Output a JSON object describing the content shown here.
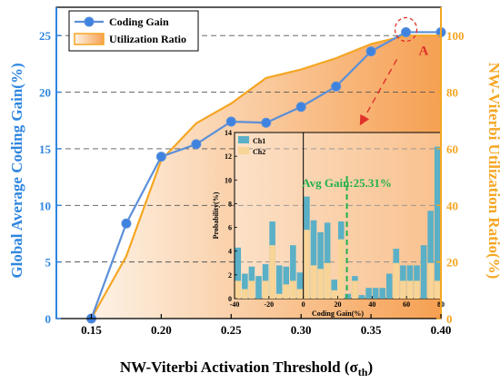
{
  "chart_data": [
    {
      "type": "line",
      "xlabel": "NW-Viterbi Activation Threshold (σth)",
      "xlabel_main": "NW-Viterbi Activation Threshold (σ",
      "xlabel_sub": "th",
      "xlabel_close": ")",
      "ylabel_left": "Global Average Coding Gain(%)",
      "ylabel_right": "NW-Viterbi Utilization Ratio(%)",
      "xlim": [
        0.125,
        0.4
      ],
      "ylim_left": [
        0,
        27.5
      ],
      "ylim_right": [
        0,
        110
      ],
      "x_ticks": [
        0.15,
        0.2,
        0.25,
        0.3,
        0.35,
        0.4
      ],
      "x_tick_labels": [
        "0.15",
        "0.20",
        "0.25",
        "0.30",
        "0.35",
        "0.40"
      ],
      "y_left_ticks": [
        0,
        5,
        10,
        15,
        20,
        25
      ],
      "y_right_ticks": [
        0,
        20,
        40,
        60,
        80,
        100
      ],
      "grid": "dashed horizontal at left-axis ticks",
      "legend_position": "top-left",
      "colors": {
        "coding_gain": "#5b8fd8",
        "coding_gain_marker": "#3f83e0",
        "utilization": "#f5a623",
        "fill_light": "#fdf2e6",
        "fill_dark": "#f6a052",
        "left_axis": "#2f86df",
        "right_axis": "#f5a623",
        "annotation": "#e0302a"
      },
      "series": [
        {
          "name": "Coding Gain",
          "axis": "left",
          "x": [
            0.15,
            0.175,
            0.2,
            0.225,
            0.25,
            0.275,
            0.3,
            0.325,
            0.35,
            0.375,
            0.4
          ],
          "values": [
            0,
            8.4,
            14.3,
            15.4,
            17.4,
            17.3,
            18.7,
            20.5,
            23.6,
            25.3,
            25.3
          ]
        },
        {
          "name": "Utilization Ratio",
          "axis": "right",
          "x": [
            0.15,
            0.175,
            0.2,
            0.225,
            0.25,
            0.275,
            0.3,
            0.325,
            0.35,
            0.375,
            0.4
          ],
          "values": [
            0,
            22,
            56,
            69,
            76,
            85,
            88,
            92,
            97,
            100,
            100
          ]
        }
      ],
      "annotation": {
        "label": "A",
        "x": 0.375,
        "value": 25.3
      }
    },
    {
      "type": "bar",
      "role": "inset histogram",
      "xlabel": "Coding Gain(%)",
      "ylabel": "Probability(%)",
      "xlim": [
        -40,
        80
      ],
      "ylim": [
        0,
        14
      ],
      "x_ticks": [
        -40,
        -20,
        0,
        20,
        40,
        60,
        80
      ],
      "y_ticks": [
        0,
        2,
        4,
        6,
        8,
        10,
        12,
        14
      ],
      "bin_width": 4,
      "colors": {
        "ch1": "#5ab0c6",
        "ch2": "#f8d596",
        "avg_line": "#22b14c"
      },
      "avg_gain": {
        "label": "Avg Gain:25.31%",
        "value": 25.31
      },
      "legend_position": "top-left",
      "series": [
        {
          "name": "Ch1",
          "bin_starts": [
            -40,
            -36,
            -32,
            -28,
            -24,
            -20,
            -16,
            -12,
            -8,
            -4,
            0,
            4,
            8,
            12,
            16,
            20,
            24,
            28,
            32,
            36,
            40,
            44,
            48,
            52,
            56,
            60,
            64,
            68,
            72,
            76
          ],
          "values": [
            4.3,
            2.1,
            2.7,
            1.9,
            2.9,
            6.5,
            2.8,
            2.7,
            4.5,
            2.2,
            8.6,
            6.6,
            5.6,
            6.4,
            1.6,
            6.5,
            0.4,
            1.9,
            0.3,
            0.9,
            0.9,
            0.9,
            2.1,
            4.2,
            2.8,
            2.8,
            2.8,
            4.5,
            7.4,
            12.8
          ]
        },
        {
          "name": "Ch2",
          "bin_starts": [
            -40,
            -36,
            -32,
            -28,
            -24,
            -20,
            -16,
            -12,
            -8,
            -4,
            0,
            4,
            8,
            12,
            16,
            20,
            24,
            28,
            32,
            36,
            40,
            44,
            48,
            52,
            56,
            60,
            64,
            68,
            72,
            76
          ],
          "values": [
            1.5,
            0.8,
            1.5,
            0,
            1.5,
            4.5,
            0.4,
            1.2,
            1.5,
            0.8,
            5.8,
            2.8,
            2.5,
            3.0,
            0.7,
            5.0,
            0,
            1.5,
            0,
            0,
            0,
            0,
            0,
            3.0,
            1.5,
            1.5,
            1.5,
            0,
            3.0,
            1.5
          ]
        }
      ]
    }
  ]
}
